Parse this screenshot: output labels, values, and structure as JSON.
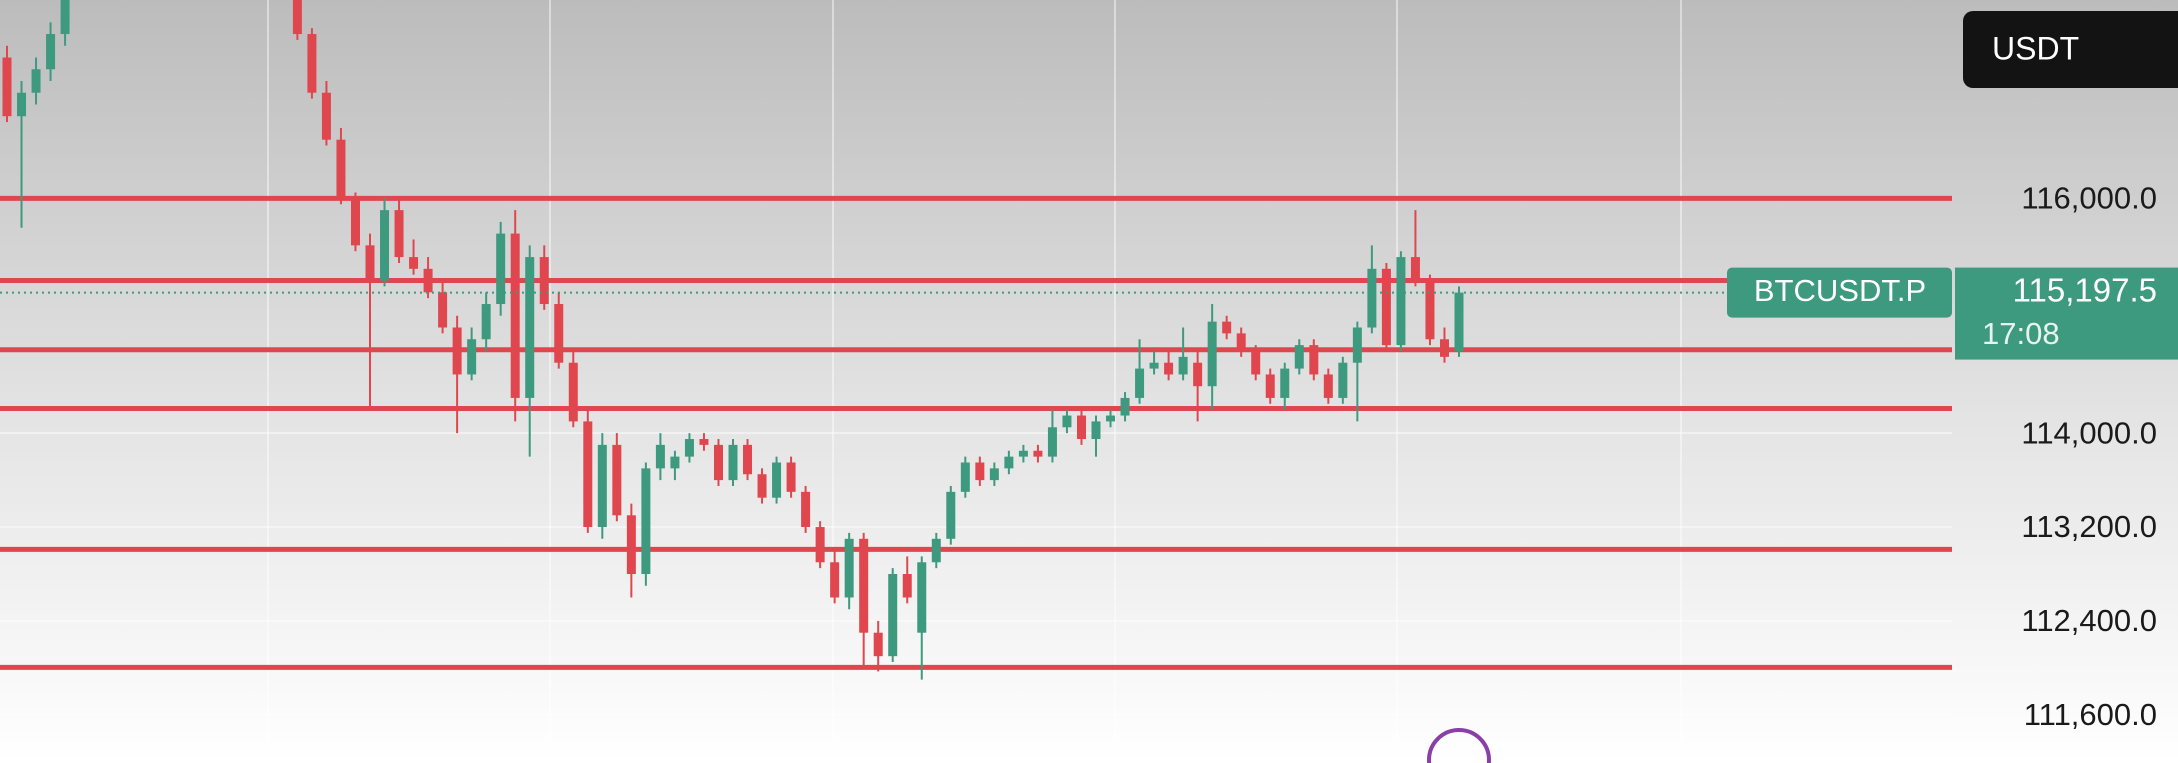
{
  "chart_data": {
    "type": "candlestick",
    "symbol": "BTCUSDT.P",
    "quote_currency": "USDT",
    "countdown": "17:08",
    "last_price": {
      "value": 115197.5,
      "label": "115,197.5"
    },
    "up_color": "#3d9a7f",
    "down_color": "#e0464e",
    "level_color": "#e0464e",
    "ylim": [
      111190,
      117690
    ],
    "yticks": [
      {
        "value": 111600,
        "label": "111,600.0"
      },
      {
        "value": 112400,
        "label": "112,400.0"
      },
      {
        "value": 113200,
        "label": "113,200.0"
      },
      {
        "value": 114000,
        "label": "114,000.0"
      },
      {
        "value": 116000,
        "label": "116,000.0"
      }
    ],
    "levels": [
      116000,
      115300,
      114710,
      114210,
      113010,
      112005
    ],
    "candles": [
      [
        117200,
        117300,
        116650,
        116700
      ],
      [
        116700,
        117000,
        115750,
        116900
      ],
      [
        116900,
        117200,
        116800,
        117100
      ],
      [
        117100,
        117500,
        117000,
        117400
      ],
      [
        117400,
        117800,
        117300,
        117700
      ],
      null,
      null,
      null,
      null,
      null,
      null,
      null,
      null,
      null,
      null,
      null,
      null,
      null,
      null,
      null,
      [
        117700,
        117750,
        117350,
        117400
      ],
      [
        117400,
        117450,
        116850,
        116900
      ],
      [
        116900,
        117000,
        116450,
        116500
      ],
      [
        116500,
        116600,
        115950,
        116000
      ],
      [
        116000,
        116050,
        115550,
        115600
      ],
      [
        115600,
        115700,
        114200,
        115300
      ],
      [
        115300,
        116000,
        115250,
        115900
      ],
      [
        115900,
        116000,
        115450,
        115500
      ],
      [
        115500,
        115650,
        115350,
        115400
      ],
      [
        115400,
        115500,
        115150,
        115200
      ],
      [
        115200,
        115300,
        114850,
        114900
      ],
      [
        114900,
        115000,
        114000,
        114500
      ],
      [
        114500,
        114900,
        114450,
        114800
      ],
      [
        114800,
        115200,
        114700,
        115100
      ],
      [
        115100,
        115800,
        115000,
        115700
      ],
      [
        115700,
        115900,
        114100,
        114300
      ],
      [
        114300,
        115600,
        113800,
        115500
      ],
      [
        115500,
        115600,
        115050,
        115100
      ],
      [
        115100,
        115200,
        114550,
        114600
      ],
      [
        114600,
        114700,
        114050,
        114100
      ],
      [
        114100,
        114200,
        113150,
        113200
      ],
      [
        113200,
        114000,
        113100,
        113900
      ],
      [
        113900,
        114000,
        113250,
        113300
      ],
      [
        113300,
        113400,
        112600,
        112800
      ],
      [
        112800,
        113750,
        112700,
        113700
      ],
      [
        113700,
        114000,
        113600,
        113900
      ],
      [
        113700,
        113850,
        113600,
        113800
      ],
      [
        113800,
        114000,
        113750,
        113950
      ],
      [
        113950,
        114000,
        113850,
        113900
      ],
      [
        113900,
        113950,
        113550,
        113600
      ],
      [
        113600,
        113950,
        113550,
        113900
      ],
      [
        113900,
        113950,
        113600,
        113650
      ],
      [
        113650,
        113700,
        113400,
        113450
      ],
      [
        113450,
        113800,
        113400,
        113750
      ],
      [
        113750,
        113800,
        113450,
        113500
      ],
      [
        113500,
        113550,
        113150,
        113200
      ],
      [
        113200,
        113250,
        112850,
        112900
      ],
      [
        112900,
        113000,
        112550,
        112600
      ],
      [
        112600,
        113150,
        112500,
        113100
      ],
      [
        113100,
        113150,
        112000,
        112300
      ],
      [
        112300,
        112400,
        111970,
        112100
      ],
      [
        112100,
        112850,
        112050,
        112800
      ],
      [
        112800,
        112950,
        112550,
        112600
      ],
      [
        112300,
        112950,
        111900,
        112900
      ],
      [
        112900,
        113150,
        112850,
        113100
      ],
      [
        113100,
        113550,
        113050,
        113500
      ],
      [
        113500,
        113800,
        113450,
        113750
      ],
      [
        113750,
        113800,
        113550,
        113600
      ],
      [
        113600,
        113750,
        113550,
        113700
      ],
      [
        113700,
        113850,
        113650,
        113800
      ],
      [
        113800,
        113900,
        113750,
        113850
      ],
      [
        113850,
        113900,
        113750,
        113800
      ],
      [
        113800,
        114200,
        113750,
        114050
      ],
      [
        114050,
        114200,
        114000,
        114150
      ],
      [
        114150,
        114200,
        113900,
        113950
      ],
      [
        113950,
        114150,
        113800,
        114100
      ],
      [
        114100,
        114200,
        114050,
        114150
      ],
      [
        114150,
        114350,
        114100,
        114300
      ],
      [
        114300,
        114800,
        114250,
        114550
      ],
      [
        114550,
        114700,
        114500,
        114600
      ],
      [
        114600,
        114700,
        114450,
        114500
      ],
      [
        114500,
        114900,
        114450,
        114650
      ],
      [
        114600,
        114700,
        114100,
        114400
      ],
      [
        114400,
        115100,
        114200,
        114950
      ],
      [
        114950,
        115000,
        114800,
        114850
      ],
      [
        114850,
        114900,
        114650,
        114700
      ],
      [
        114700,
        114750,
        114450,
        114500
      ],
      [
        114500,
        114550,
        114250,
        114300
      ],
      [
        114300,
        114600,
        114200,
        114550
      ],
      [
        114550,
        114800,
        114500,
        114750
      ],
      [
        114750,
        114800,
        114450,
        114500
      ],
      [
        114500,
        114550,
        114250,
        114300
      ],
      [
        114300,
        114650,
        114250,
        114600
      ],
      [
        114600,
        114950,
        114100,
        114900
      ],
      [
        114900,
        115600,
        114850,
        115400
      ],
      [
        115400,
        115450,
        114700,
        114750
      ],
      [
        114750,
        115550,
        114700,
        115500
      ],
      [
        115500,
        115900,
        115250,
        115300
      ],
      [
        115300,
        115350,
        114750,
        114800
      ],
      [
        114800,
        114900,
        114600,
        114650
      ],
      [
        114700,
        115250,
        114650,
        115197.5
      ]
    ]
  }
}
